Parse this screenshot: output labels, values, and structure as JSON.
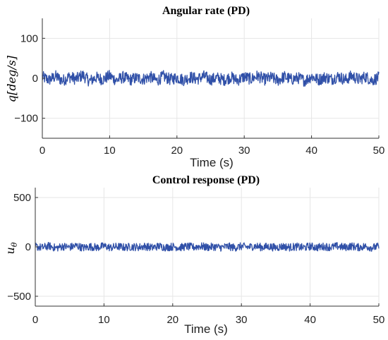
{
  "chart_data": [
    {
      "type": "line",
      "title": "Angular rate (PD)",
      "xlabel": "Time (s)",
      "ylabel": "q[deg/s]",
      "xlim": [
        0,
        50
      ],
      "ylim": [
        -150,
        150
      ],
      "xticks": [
        0,
        10,
        20,
        30,
        40,
        50
      ],
      "yticks": [
        -100,
        0,
        100
      ],
      "grid": true,
      "series": [
        {
          "color": "#3050a8",
          "x": [
            0,
            1,
            2,
            3,
            4,
            5,
            6,
            7,
            8,
            9,
            10,
            11,
            12,
            13,
            14,
            15,
            16,
            17,
            18,
            19,
            20,
            21,
            22,
            23,
            24,
            25,
            26,
            27,
            28,
            29,
            30,
            31,
            32,
            33,
            34,
            35,
            36,
            37,
            38,
            39,
            40,
            41,
            42,
            43,
            44,
            45,
            46,
            47,
            48,
            49,
            50
          ],
          "y": [
            3,
            -4,
            5,
            -6,
            4,
            -2,
            8,
            -7,
            2,
            -3,
            6,
            -5,
            3,
            -4,
            1,
            -2,
            4,
            -6,
            5,
            -3,
            2,
            -4,
            3,
            -2,
            5,
            -3,
            1,
            -4,
            3,
            -5,
            4,
            -2,
            6,
            -3,
            2,
            -5,
            4,
            -3,
            1,
            -6,
            5,
            -4,
            3,
            -2,
            5,
            -4,
            6,
            -3,
            4,
            -5,
            2
          ],
          "amplitude": 15
        }
      ]
    },
    {
      "type": "line",
      "title": "Control response (PD)",
      "xlabel": "Time (s)",
      "ylabel": "u_θ",
      "xlim": [
        0,
        50
      ],
      "ylim": [
        -600,
        600
      ],
      "xticks": [
        0,
        10,
        20,
        30,
        40,
        50
      ],
      "yticks": [
        -500,
        0,
        500
      ],
      "grid": true,
      "series": [
        {
          "color": "#3050a8",
          "x": [
            0,
            1,
            2,
            3,
            4,
            5,
            6,
            7,
            8,
            9,
            10,
            11,
            12,
            13,
            14,
            15,
            16,
            17,
            18,
            19,
            20,
            21,
            22,
            23,
            24,
            25,
            26,
            27,
            28,
            29,
            30,
            31,
            32,
            33,
            34,
            35,
            36,
            37,
            38,
            39,
            40,
            41,
            42,
            43,
            44,
            45,
            46,
            47,
            48,
            49,
            50
          ],
          "y": [
            5,
            -8,
            10,
            -12,
            6,
            -4,
            12,
            -10,
            3,
            -6,
            8,
            -7,
            4,
            -5,
            2,
            -3,
            6,
            -8,
            7,
            -5,
            3,
            -6,
            4,
            -3,
            7,
            -4,
            2,
            -6,
            4,
            -7,
            5,
            -3,
            8,
            -4,
            3,
            -7,
            5,
            -4,
            2,
            -8,
            6,
            -5,
            4,
            -3,
            7,
            -5,
            8,
            -4,
            5,
            -7,
            3
          ],
          "amplitude": 40
        }
      ]
    }
  ]
}
